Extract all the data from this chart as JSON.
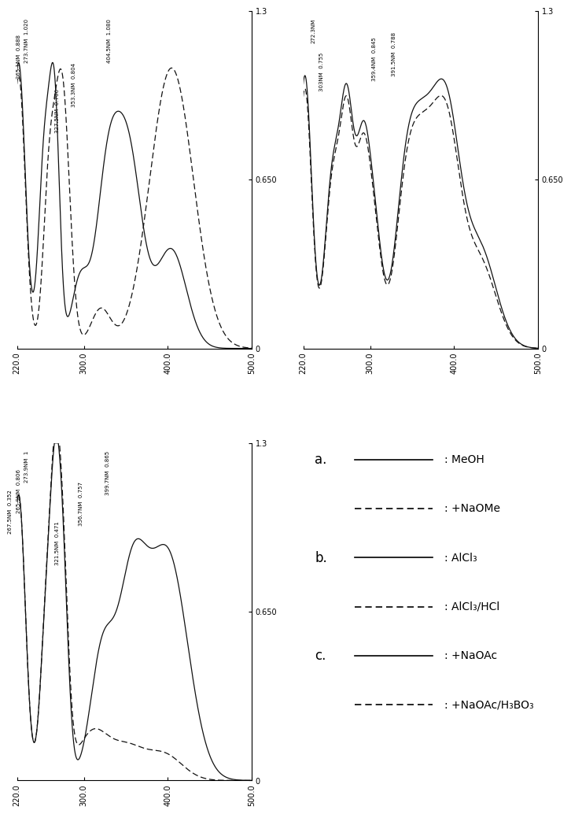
{
  "panels": {
    "a": {
      "xlim": [
        220,
        500
      ],
      "ylim": [
        0,
        1.3
      ],
      "xticks": [
        220.0,
        300.0,
        400.0,
        500.0
      ],
      "yticks_right": [
        0.0,
        0.65,
        1.3
      ],
      "ytick_labels": [
        "0",
        "0.650",
        "1.3"
      ],
      "annots": [
        {
          "text": "273.7NM  1.020",
          "xd": 232,
          "yd": 1.27
        },
        {
          "text": "265.1NM  0.888",
          "xd": 222,
          "yd": 1.21
        },
        {
          "text": "404.5NM  1.080",
          "xd": 330,
          "yd": 1.27
        },
        {
          "text": "353.3NM  0.804",
          "xd": 288,
          "yd": 1.1
        },
        {
          "text": "327.5NM  0.706",
          "xd": 268,
          "yd": 1.0
        }
      ]
    },
    "b": {
      "xlim": [
        220,
        500
      ],
      "ylim": [
        0,
        1.3
      ],
      "xticks": [
        220.0,
        300.0,
        400.0,
        500.0
      ],
      "yticks_right": [
        0.0,
        0.65,
        1.3
      ],
      "ytick_labels": [
        "0",
        "0.650",
        "1.3"
      ],
      "annots": [
        {
          "text": "272.3NM",
          "xd": 232,
          "yd": 1.27
        },
        {
          "text": "303NM  0.755",
          "xd": 242,
          "yd": 1.14
        },
        {
          "text": "359.4NM  0.845",
          "xd": 305,
          "yd": 1.2
        },
        {
          "text": "391.5NM  0.788",
          "xd": 328,
          "yd": 1.22
        }
      ]
    },
    "c": {
      "xlim": [
        220,
        500
      ],
      "ylim": [
        0,
        1.3
      ],
      "xticks": [
        220.0,
        300.0,
        400.0,
        500.0
      ],
      "yticks_right": [
        0.0,
        0.65,
        1.3
      ],
      "ytick_labels": [
        "0",
        "0.650",
        "1.3"
      ],
      "annots": [
        {
          "text": "273.9NM  1",
          "xd": 232,
          "yd": 1.27
        },
        {
          "text": "265.9NM  0.806",
          "xd": 222,
          "yd": 1.2
        },
        {
          "text": "267.5NM  0.352",
          "xd": 212,
          "yd": 1.12
        },
        {
          "text": "399.7NM  0.865",
          "xd": 328,
          "yd": 1.27
        },
        {
          "text": "356.7NM  0.757",
          "xd": 296,
          "yd": 1.15
        },
        {
          "text": "321.5NM  0.471",
          "xd": 268,
          "yd": 1.0
        }
      ]
    }
  },
  "legend": {
    "entries": [
      {
        "label": "a.",
        "line": "solid",
        "desc": ": MeOH"
      },
      {
        "label": "",
        "line": "dashed",
        "desc": ": +NaOMe"
      },
      {
        "label": "b.",
        "line": "solid",
        "desc": ": AlCl₃"
      },
      {
        "label": "",
        "line": "dashed",
        "desc": ": AlCl₃/HCl"
      },
      {
        "label": "c.",
        "line": "solid",
        "desc": ": +NaOAc"
      },
      {
        "label": "",
        "line": "dashed",
        "desc": ": +NaOAc/H₃BO₃"
      }
    ]
  },
  "bg_color": "#f0f0f0",
  "line_color": "#222222"
}
